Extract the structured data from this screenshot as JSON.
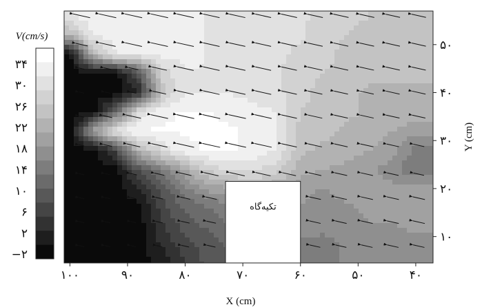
{
  "chart_data": {
    "type": "heatmap",
    "subtype": "contour-with-velocity-vectors",
    "xlabel": "X (cm)",
    "ylabel": "Y (cm)",
    "x_ticks": [
      {
        "value": 100,
        "label": "۱۰۰"
      },
      {
        "value": 90,
        "label": "۹۰"
      },
      {
        "value": 80,
        "label": "۸۰"
      },
      {
        "value": 70,
        "label": "۷۰"
      },
      {
        "value": 60,
        "label": "۶۰"
      },
      {
        "value": 50,
        "label": "۵۰"
      },
      {
        "value": 40,
        "label": "۴۰"
      }
    ],
    "y_ticks": [
      {
        "value": 10,
        "label": "۱۰"
      },
      {
        "value": 20,
        "label": "۲۰"
      },
      {
        "value": 30,
        "label": "۳۰"
      },
      {
        "value": 40,
        "label": "۴۰"
      },
      {
        "value": 50,
        "label": "۵۰"
      }
    ],
    "xlim": [
      101,
      37
    ],
    "ylim": [
      4.5,
      57
    ],
    "x_reversed": true,
    "colorbar": {
      "title": "V(cm/s)",
      "labels": [
        "۳۴",
        "۳۰",
        "۲۶",
        "۲۲",
        "۱۸",
        "۱۴",
        "۱۰",
        "۶",
        "۲",
        "−۲"
      ],
      "values": [
        34,
        30,
        26,
        22,
        18,
        14,
        10,
        6,
        2,
        -2
      ],
      "colormap": "grayscale (black = low, white = high)",
      "colors": [
        "#ffffff",
        "#f0f0f0",
        "#e1e1e1",
        "#d2d2d2",
        "#c3c3c3",
        "#b2b2b2",
        "#a1a1a1",
        "#8f8f8f",
        "#7d7d7d",
        "#6b6b6b",
        "#585858",
        "#454545",
        "#323232",
        "#1e1e1e",
        "#0a0a0a"
      ]
    },
    "x_grid": [
      100,
      96,
      92,
      88,
      84,
      80,
      76,
      72,
      68,
      64,
      60,
      56,
      52,
      48,
      44,
      40
    ],
    "y_grid": [
      4,
      8,
      12,
      16,
      20,
      24,
      28,
      32,
      36,
      40,
      44,
      48,
      52,
      56
    ],
    "velocity_field": [
      [
        -2,
        -2,
        -2,
        -2,
        0,
        4,
        8,
        8,
        8,
        8,
        14,
        14,
        15,
        16,
        16,
        16
      ],
      [
        -2,
        -2,
        -2,
        -2,
        2,
        6,
        8,
        10,
        10,
        12,
        14,
        14,
        15,
        16,
        16,
        16
      ],
      [
        -2,
        -2,
        -2,
        -2,
        4,
        8,
        10,
        12,
        12,
        14,
        16,
        15,
        16,
        17,
        17,
        18
      ],
      [
        -2,
        -2,
        -2,
        -2,
        6,
        10,
        12,
        14,
        14,
        16,
        17,
        17,
        17,
        18,
        18,
        18
      ],
      [
        -2,
        -2,
        -2,
        2,
        8,
        14,
        18,
        20,
        22,
        20,
        18,
        17,
        18,
        18,
        18,
        19
      ],
      [
        -2,
        -2,
        -2,
        8,
        14,
        20,
        26,
        28,
        28,
        26,
        21,
        20,
        19,
        18,
        16,
        12
      ],
      [
        -2,
        -2,
        6,
        22,
        28,
        32,
        33,
        33,
        32,
        30,
        23,
        22,
        21,
        20,
        18,
        14
      ],
      [
        -2,
        18,
        30,
        33,
        33,
        33,
        33,
        33,
        32,
        30,
        24,
        23,
        22,
        21,
        20,
        18
      ],
      [
        -2,
        -2,
        10,
        28,
        32,
        33,
        33,
        32,
        31,
        30,
        25,
        24,
        23,
        22,
        22,
        22
      ],
      [
        -2,
        -2,
        -2,
        2,
        24,
        30,
        30,
        30,
        29,
        28,
        26,
        24,
        23,
        22,
        22,
        22
      ],
      [
        -2,
        -2,
        -2,
        8,
        26,
        30,
        30,
        30,
        28,
        28,
        26,
        25,
        24,
        23,
        23,
        23
      ],
      [
        -2,
        22,
        30,
        30,
        31,
        31,
        30,
        29,
        28,
        28,
        27,
        26,
        24,
        24,
        23,
        23
      ],
      [
        22,
        30,
        32,
        32,
        31,
        31,
        30,
        29,
        28,
        28,
        28,
        26,
        25,
        24,
        24,
        24
      ],
      [
        30,
        32,
        32,
        32,
        32,
        31,
        30,
        29,
        28,
        28,
        28,
        27,
        26,
        25,
        24,
        24
      ]
    ],
    "vector_x": [
      98,
      93.5,
      89,
      84.5,
      80,
      75.5,
      71,
      66.5,
      62,
      57.5,
      53,
      48.5,
      44,
      39.5
    ],
    "vector_y": [
      8,
      13,
      18,
      23,
      29,
      35,
      40,
      45,
      50,
      56
    ],
    "vector_direction": "-x with slight +y (flow toward lower X)",
    "support_block": {
      "label": "تکیه‌گاه",
      "x_range": [
        73,
        60
      ],
      "y_range": [
        4.5,
        21.5
      ]
    }
  }
}
